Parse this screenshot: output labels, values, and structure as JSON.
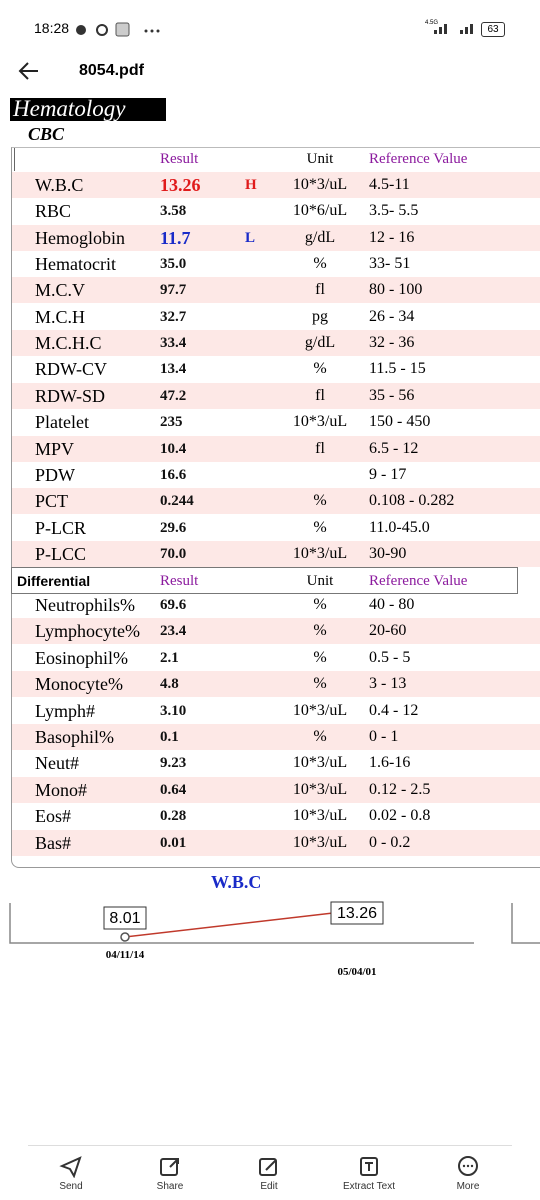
{
  "status_bar": {
    "time": "18:28",
    "network": "4.5G",
    "battery": "63"
  },
  "header": {
    "title": "8054.pdf"
  },
  "document": {
    "section": "Hematology",
    "subsection": "CBC",
    "cbc": {
      "columns": {
        "result": "Result",
        "unit": "Unit",
        "reference": "Reference Value"
      },
      "rows": [
        {
          "test": "W.B.C",
          "result": "13.26",
          "flag": "H",
          "unit": "10*3/uL",
          "reference": "4.5-11"
        },
        {
          "test": "RBC",
          "result": "3.58",
          "unit": "10*6/uL",
          "reference": "3.5- 5.5"
        },
        {
          "test": "Hemoglobin",
          "result": "11.7",
          "flag": "L",
          "unit": "g/dL",
          "reference": "12 - 16"
        },
        {
          "test": "Hematocrit",
          "result": "35.0",
          "unit": "%",
          "reference": "33- 51"
        },
        {
          "test": "M.C.V",
          "result": "97.7",
          "unit": "fl",
          "reference": "80 - 100"
        },
        {
          "test": "M.C.H",
          "result": "32.7",
          "unit": "pg",
          "reference": "26 - 34"
        },
        {
          "test": "M.C.H.C",
          "result": "33.4",
          "unit": "g/dL",
          "reference": "32 - 36"
        },
        {
          "test": "RDW-CV",
          "result": "13.4",
          "unit": "%",
          "reference": "11.5 - 15"
        },
        {
          "test": "RDW-SD",
          "result": "47.2",
          "unit": "fl",
          "reference": "35 - 56"
        },
        {
          "test": "Platelet",
          "result": "235",
          "unit": "10*3/uL",
          "reference": "150 - 450"
        },
        {
          "test": "MPV",
          "result": "10.4",
          "unit": "fl",
          "reference": "6.5 - 12"
        },
        {
          "test": "PDW",
          "result": "16.6",
          "reference": "9 - 17"
        },
        {
          "test": "PCT",
          "result": "0.244",
          "unit": "%",
          "reference": "0.108 - 0.282"
        },
        {
          "test": "P-LCR",
          "result": "29.6",
          "unit": "%",
          "reference": "11.0-45.0"
        },
        {
          "test": "P-LCC",
          "result": "70.0",
          "unit": "10*3/uL",
          "reference": "30-90"
        }
      ]
    },
    "differential": {
      "columns": {
        "title": "Differential",
        "result": "Result",
        "unit": "Unit",
        "reference": "Reference Value"
      },
      "rows": [
        {
          "test": "Neutrophils%",
          "result": "69.6",
          "unit": "%",
          "reference": "40 - 80"
        },
        {
          "test": "Lymphocyte%",
          "result": "23.4",
          "unit": "%",
          "reference": "20-60"
        },
        {
          "test": "Eosinophil%",
          "result": "2.1",
          "unit": "%",
          "reference": "0.5 - 5"
        },
        {
          "test": "Monocyte%",
          "result": "4.8",
          "unit": "%",
          "reference": "3 - 13"
        },
        {
          "test": "Lymph#",
          "result": "3.10",
          "unit": "10*3/uL",
          "reference": "0.4 - 12"
        },
        {
          "test": "Basophil%",
          "result": "0.1",
          "unit": "%",
          "reference": "0 - 1"
        },
        {
          "test": "Neut#",
          "result": "9.23",
          "unit": "10*3/uL",
          "reference": "1.6-16"
        },
        {
          "test": "Mono#",
          "result": "0.64",
          "unit": "10*3/uL",
          "reference": "0.12 - 2.5"
        },
        {
          "test": "Eos#",
          "result": "0.28",
          "unit": "10*3/uL",
          "reference": "0.02 - 0.8"
        },
        {
          "test": "Bas#",
          "result": "0.01",
          "unit": "10*3/uL",
          "reference": "0 - 0.2"
        }
      ]
    },
    "trend": {
      "title": "W.B.C",
      "points": [
        {
          "value": "8.01",
          "date": "04/11/14"
        },
        {
          "value": "13.26",
          "date": "05/04/01"
        }
      ]
    }
  },
  "toolbar": {
    "items": [
      "Send",
      "Share",
      "Edit",
      "Extract Text",
      "More"
    ]
  }
}
